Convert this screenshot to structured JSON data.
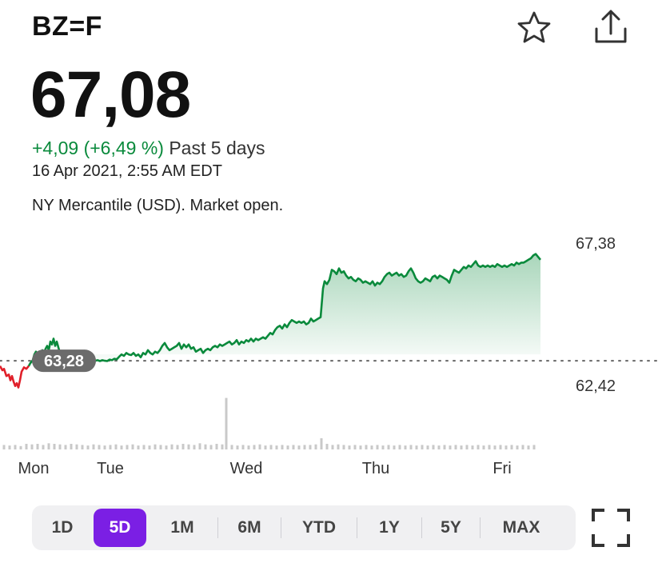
{
  "header": {
    "symbol": "BZ=F",
    "star_icon": "star-outline-icon",
    "share_icon": "share-icon"
  },
  "quote": {
    "price": "67,08",
    "change": "+4,09 (+6,49 %)",
    "period": "Past 5 days",
    "timestamp": "16 Apr 2021, 2:55 AM EDT",
    "market_status": "NY Mercantile (USD). Market open."
  },
  "colors": {
    "up": "#0a8a3c",
    "down": "#e0202a",
    "accent": "#7b1fe4"
  },
  "chart_data": {
    "type": "area",
    "x_labels": [
      "Mon",
      "Tue",
      "Wed",
      "Thu",
      "Fri"
    ],
    "y_tick_labels": [
      "67,38",
      "62,42"
    ],
    "previous_close_label": "63,28",
    "previous_close": 63.28,
    "ylim": [
      62.42,
      67.38
    ],
    "grid": false,
    "series": [
      {
        "points": [
          [
            0,
            63.1
          ],
          [
            3,
            62.95
          ],
          [
            5,
            63.0
          ],
          [
            8,
            62.75
          ],
          [
            11,
            62.8
          ],
          [
            13,
            62.6
          ],
          [
            15,
            62.75
          ],
          [
            17,
            62.55
          ],
          [
            19,
            62.4
          ],
          [
            21,
            62.5
          ],
          [
            23,
            62.35
          ],
          [
            25,
            62.6
          ],
          [
            27,
            62.9
          ],
          [
            30,
            63.05
          ],
          [
            33,
            63.0
          ],
          [
            36,
            63.1
          ],
          [
            38,
            63.2
          ],
          [
            41,
            63.3
          ],
          [
            43,
            63.5
          ],
          [
            45,
            63.6
          ],
          [
            47,
            63.45
          ],
          [
            49,
            63.55
          ],
          [
            51,
            63.5
          ],
          [
            53,
            63.65
          ],
          [
            55,
            63.55
          ],
          [
            57,
            63.7
          ],
          [
            59,
            63.8
          ],
          [
            61,
            63.65
          ],
          [
            63,
            63.95
          ],
          [
            65,
            63.85
          ],
          [
            67,
            64.05
          ],
          [
            69,
            63.8
          ],
          [
            71,
            63.95
          ],
          [
            73,
            63.75
          ],
          [
            75,
            63.55
          ],
          [
            77,
            63.45
          ],
          [
            80,
            63.35
          ],
          [
            83,
            63.25
          ],
          [
            86,
            63.2
          ],
          [
            89,
            63.22
          ],
          [
            92,
            63.28
          ],
          [
            95,
            63.3
          ],
          [
            98,
            63.25
          ],
          [
            101,
            63.3
          ],
          [
            104,
            63.28
          ],
          [
            107,
            63.3
          ],
          [
            110,
            63.28
          ],
          [
            113,
            63.27
          ],
          [
            116,
            63.3
          ],
          [
            119,
            63.28
          ],
          [
            122,
            63.3
          ],
          [
            125,
            63.27
          ],
          [
            128,
            63.3
          ],
          [
            131,
            63.28
          ],
          [
            134,
            63.27
          ],
          [
            137,
            63.32
          ],
          [
            140,
            63.3
          ],
          [
            143,
            63.35
          ],
          [
            146,
            63.33
          ],
          [
            149,
            63.42
          ],
          [
            152,
            63.5
          ],
          [
            155,
            63.45
          ],
          [
            158,
            63.55
          ],
          [
            161,
            63.5
          ],
          [
            164,
            63.48
          ],
          [
            167,
            63.55
          ],
          [
            170,
            63.45
          ],
          [
            173,
            63.5
          ],
          [
            176,
            63.4
          ],
          [
            179,
            63.55
          ],
          [
            182,
            63.5
          ],
          [
            185,
            63.65
          ],
          [
            188,
            63.55
          ],
          [
            191,
            63.5
          ],
          [
            194,
            63.6
          ],
          [
            197,
            63.55
          ],
          [
            200,
            63.65
          ],
          [
            203,
            63.8
          ],
          [
            206,
            63.9
          ],
          [
            209,
            63.75
          ],
          [
            212,
            63.65
          ],
          [
            215,
            63.7
          ],
          [
            218,
            63.75
          ],
          [
            221,
            63.8
          ],
          [
            224,
            63.9
          ],
          [
            227,
            63.7
          ],
          [
            230,
            63.85
          ],
          [
            233,
            63.75
          ],
          [
            236,
            63.85
          ],
          [
            239,
            63.7
          ],
          [
            242,
            63.75
          ],
          [
            245,
            63.6
          ],
          [
            248,
            63.65
          ],
          [
            251,
            63.7
          ],
          [
            254,
            63.55
          ],
          [
            257,
            63.65
          ],
          [
            260,
            63.7
          ],
          [
            263,
            63.65
          ],
          [
            266,
            63.75
          ],
          [
            269,
            63.8
          ],
          [
            272,
            63.75
          ],
          [
            275,
            63.85
          ],
          [
            278,
            63.8
          ],
          [
            281,
            63.85
          ],
          [
            284,
            63.9
          ],
          [
            287,
            63.95
          ],
          [
            290,
            63.85
          ],
          [
            293,
            63.9
          ],
          [
            296,
            64.0
          ],
          [
            299,
            63.85
          ],
          [
            302,
            63.95
          ],
          [
            305,
            63.9
          ],
          [
            308,
            64.0
          ],
          [
            311,
            63.95
          ],
          [
            314,
            64.05
          ],
          [
            317,
            63.95
          ],
          [
            320,
            64.05
          ],
          [
            323,
            64.0
          ],
          [
            326,
            64.05
          ],
          [
            329,
            64.1
          ],
          [
            332,
            64.05
          ],
          [
            335,
            64.15
          ],
          [
            338,
            64.25
          ],
          [
            341,
            64.2
          ],
          [
            344,
            64.35
          ],
          [
            347,
            64.45
          ],
          [
            350,
            64.5
          ],
          [
            353,
            64.4
          ],
          [
            356,
            64.55
          ],
          [
            359,
            64.45
          ],
          [
            362,
            64.6
          ],
          [
            365,
            64.7
          ],
          [
            368,
            64.65
          ],
          [
            371,
            64.6
          ],
          [
            374,
            64.65
          ],
          [
            377,
            64.6
          ],
          [
            380,
            64.65
          ],
          [
            383,
            64.55
          ],
          [
            386,
            64.6
          ],
          [
            389,
            64.75
          ],
          [
            392,
            64.65
          ],
          [
            395,
            64.7
          ],
          [
            398,
            64.75
          ],
          [
            401,
            64.8
          ],
          [
            404,
            65.8
          ],
          [
            406,
            66.05
          ],
          [
            409,
            65.95
          ],
          [
            412,
            66.1
          ],
          [
            415,
            66.45
          ],
          [
            418,
            66.4
          ],
          [
            421,
            66.3
          ],
          [
            424,
            66.5
          ],
          [
            427,
            66.35
          ],
          [
            430,
            66.4
          ],
          [
            433,
            66.25
          ],
          [
            436,
            66.15
          ],
          [
            439,
            66.2
          ],
          [
            442,
            66.1
          ],
          [
            445,
            66.05
          ],
          [
            448,
            66.15
          ],
          [
            451,
            66.1
          ],
          [
            454,
            66.0
          ],
          [
            457,
            66.05
          ],
          [
            460,
            66.0
          ],
          [
            463,
            65.95
          ],
          [
            466,
            66.05
          ],
          [
            469,
            65.9
          ],
          [
            472,
            66.0
          ],
          [
            475,
            65.95
          ],
          [
            478,
            66.05
          ],
          [
            481,
            66.2
          ],
          [
            484,
            66.3
          ],
          [
            487,
            66.35
          ],
          [
            490,
            66.25
          ],
          [
            493,
            66.3
          ],
          [
            496,
            66.35
          ],
          [
            499,
            66.25
          ],
          [
            502,
            66.3
          ],
          [
            505,
            66.2
          ],
          [
            508,
            66.25
          ],
          [
            511,
            66.4
          ],
          [
            514,
            66.5
          ],
          [
            517,
            66.35
          ],
          [
            520,
            66.15
          ],
          [
            523,
            66.05
          ],
          [
            526,
            66.0
          ],
          [
            529,
            66.05
          ],
          [
            532,
            66.15
          ],
          [
            535,
            66.1
          ],
          [
            538,
            66.05
          ],
          [
            541,
            66.2
          ],
          [
            544,
            66.25
          ],
          [
            547,
            66.15
          ],
          [
            550,
            66.25
          ],
          [
            553,
            66.2
          ],
          [
            556,
            66.15
          ],
          [
            559,
            66.1
          ],
          [
            562,
            66.0
          ],
          [
            565,
            66.25
          ],
          [
            568,
            66.45
          ],
          [
            571,
            66.4
          ],
          [
            574,
            66.35
          ],
          [
            577,
            66.45
          ],
          [
            580,
            66.55
          ],
          [
            583,
            66.5
          ],
          [
            586,
            66.6
          ],
          [
            589,
            66.55
          ],
          [
            592,
            66.65
          ],
          [
            595,
            66.75
          ],
          [
            598,
            66.6
          ],
          [
            601,
            66.55
          ],
          [
            604,
            66.6
          ],
          [
            607,
            66.55
          ],
          [
            610,
            66.6
          ],
          [
            613,
            66.55
          ],
          [
            616,
            66.6
          ],
          [
            619,
            66.55
          ],
          [
            622,
            66.65
          ],
          [
            625,
            66.6
          ],
          [
            628,
            66.55
          ],
          [
            631,
            66.6
          ],
          [
            634,
            66.55
          ],
          [
            637,
            66.6
          ],
          [
            640,
            66.65
          ],
          [
            643,
            66.6
          ],
          [
            646,
            66.7
          ],
          [
            649,
            66.65
          ],
          [
            652,
            66.7
          ],
          [
            655,
            66.7
          ],
          [
            658,
            66.75
          ],
          [
            661,
            66.8
          ],
          [
            664,
            66.85
          ],
          [
            667,
            66.95
          ],
          [
            670,
            67.0
          ],
          [
            673,
            66.9
          ],
          [
            676,
            66.8
          ]
        ]
      }
    ],
    "volume": [
      [
        5,
        0.4
      ],
      [
        12,
        0.35
      ],
      [
        19,
        0.4
      ],
      [
        26,
        0.3
      ],
      [
        33,
        0.5
      ],
      [
        40,
        0.45
      ],
      [
        47,
        0.5
      ],
      [
        54,
        0.4
      ],
      [
        61,
        0.55
      ],
      [
        68,
        0.5
      ],
      [
        75,
        0.45
      ],
      [
        82,
        0.4
      ],
      [
        89,
        0.5
      ],
      [
        96,
        0.45
      ],
      [
        103,
        0.4
      ],
      [
        110,
        0.35
      ],
      [
        117,
        0.45
      ],
      [
        124,
        0.4
      ],
      [
        131,
        0.35
      ],
      [
        138,
        0.4
      ],
      [
        145,
        0.45
      ],
      [
        152,
        0.35
      ],
      [
        159,
        0.4
      ],
      [
        166,
        0.45
      ],
      [
        173,
        0.35
      ],
      [
        180,
        0.4
      ],
      [
        187,
        0.35
      ],
      [
        194,
        0.45
      ],
      [
        201,
        0.4
      ],
      [
        208,
        0.35
      ],
      [
        215,
        0.45
      ],
      [
        222,
        0.4
      ],
      [
        229,
        0.5
      ],
      [
        236,
        0.45
      ],
      [
        243,
        0.4
      ],
      [
        250,
        0.55
      ],
      [
        257,
        0.45
      ],
      [
        264,
        0.4
      ],
      [
        271,
        0.5
      ],
      [
        278,
        0.45
      ],
      [
        283,
        4.6
      ],
      [
        290,
        0.4
      ],
      [
        297,
        0.35
      ],
      [
        304,
        0.4
      ],
      [
        311,
        0.35
      ],
      [
        318,
        0.4
      ],
      [
        325,
        0.45
      ],
      [
        332,
        0.35
      ],
      [
        339,
        0.4
      ],
      [
        346,
        0.35
      ],
      [
        353,
        0.4
      ],
      [
        360,
        0.35
      ],
      [
        367,
        0.4
      ],
      [
        374,
        0.35
      ],
      [
        381,
        0.4
      ],
      [
        388,
        0.4
      ],
      [
        395,
        0.45
      ],
      [
        402,
        1.0
      ],
      [
        409,
        0.5
      ],
      [
        416,
        0.4
      ],
      [
        423,
        0.45
      ],
      [
        430,
        0.4
      ],
      [
        437,
        0.35
      ],
      [
        444,
        0.4
      ],
      [
        451,
        0.35
      ],
      [
        458,
        0.4
      ],
      [
        465,
        0.35
      ],
      [
        472,
        0.4
      ],
      [
        479,
        0.35
      ],
      [
        486,
        0.4
      ],
      [
        493,
        0.35
      ],
      [
        500,
        0.4
      ],
      [
        507,
        0.35
      ],
      [
        514,
        0.4
      ],
      [
        521,
        0.35
      ],
      [
        528,
        0.4
      ],
      [
        535,
        0.35
      ],
      [
        542,
        0.4
      ],
      [
        549,
        0.35
      ],
      [
        556,
        0.4
      ],
      [
        563,
        0.35
      ],
      [
        570,
        0.4
      ],
      [
        577,
        0.35
      ],
      [
        584,
        0.4
      ],
      [
        591,
        0.35
      ],
      [
        598,
        0.4
      ],
      [
        605,
        0.35
      ],
      [
        612,
        0.4
      ],
      [
        619,
        0.35
      ],
      [
        626,
        0.4
      ],
      [
        633,
        0.35
      ],
      [
        640,
        0.4
      ],
      [
        647,
        0.35
      ],
      [
        654,
        0.4
      ],
      [
        661,
        0.35
      ],
      [
        668,
        0.4
      ]
    ]
  },
  "range_tabs": [
    {
      "label": "1D",
      "active": false
    },
    {
      "label": "5D",
      "active": true
    },
    {
      "label": "1M",
      "active": false
    },
    {
      "label": "6M",
      "active": false
    },
    {
      "label": "YTD",
      "active": false
    },
    {
      "label": "1Y",
      "active": false
    },
    {
      "label": "5Y",
      "active": false
    },
    {
      "label": "MAX",
      "active": false
    }
  ],
  "fullscreen_icon": "fullscreen-icon"
}
